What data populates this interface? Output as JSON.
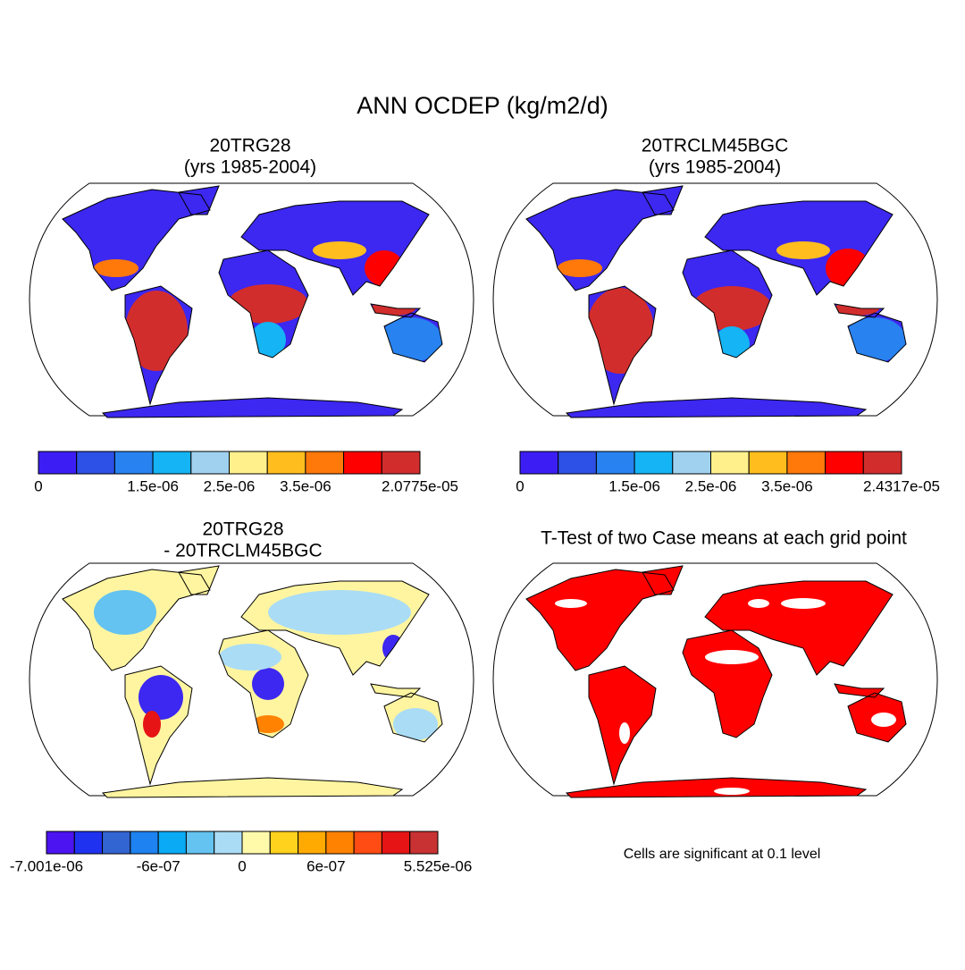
{
  "title": "ANN OCDEP (kg/m2/d)",
  "panels": [
    {
      "title": "20TRG28",
      "subtitle": "(yrs 1985-2004)",
      "colorbar": {
        "colors": [
          "#3c1ef5",
          "#2d50e6",
          "#2882f0",
          "#14b4f5",
          "#a0d2f0",
          "#fff08c",
          "#ffbe1e",
          "#ff780a",
          "#ff0000",
          "#d22d2d"
        ],
        "labels": [
          0,
          {
            "value": 1.5e-06,
            "label": "1.5e-06"
          },
          {
            "value": 2.5e-06,
            "label": "2.5e-06"
          },
          {
            "value": 3.5e-06,
            "label": "3.5e-06"
          },
          {
            "value": 2.0775e-05,
            "label": "2.0775e-05"
          }
        ]
      }
    },
    {
      "title": "20TRCLM45BGC",
      "subtitle": "(yrs 1985-2004)",
      "colorbar": {
        "colors": [
          "#3c1ef5",
          "#2d50e6",
          "#2882f0",
          "#14b4f5",
          "#a0d2f0",
          "#fff08c",
          "#ffbe1e",
          "#ff780a",
          "#ff0000",
          "#d22d2d"
        ],
        "labels": [
          0,
          {
            "value": 1.5e-06,
            "label": "1.5e-06"
          },
          {
            "value": 2.5e-06,
            "label": "2.5e-06"
          },
          {
            "value": 3.5e-06,
            "label": "3.5e-06"
          },
          {
            "value": 2.4317e-05,
            "label": "2.4317e-05"
          }
        ]
      }
    },
    {
      "title": "20TRG28",
      "subtitle": "- 20TRCLM45BGC",
      "colorbar": {
        "colors": [
          "#4b14f0",
          "#1e32f0",
          "#3264d2",
          "#1e82f0",
          "#0aaaf5",
          "#64c3f0",
          "#aadcf5",
          "#fffaaa",
          "#ffd21e",
          "#ffaa00",
          "#ff8200",
          "#ff4b14",
          "#e61414",
          "#c83232"
        ],
        "labels": [
          {
            "value": -7.001e-06,
            "label": "-7.001e-06"
          },
          {
            "value": -6e-07,
            "label": "-6e-07"
          },
          0,
          {
            "value": 6e-07,
            "label": "6e-07"
          },
          {
            "value": 5.525e-06,
            "label": "5.525e-06"
          }
        ]
      }
    },
    {
      "title": "T-Test of two Case means at each grid point",
      "note": "Cells are significant at 0.1 level"
    }
  ]
}
